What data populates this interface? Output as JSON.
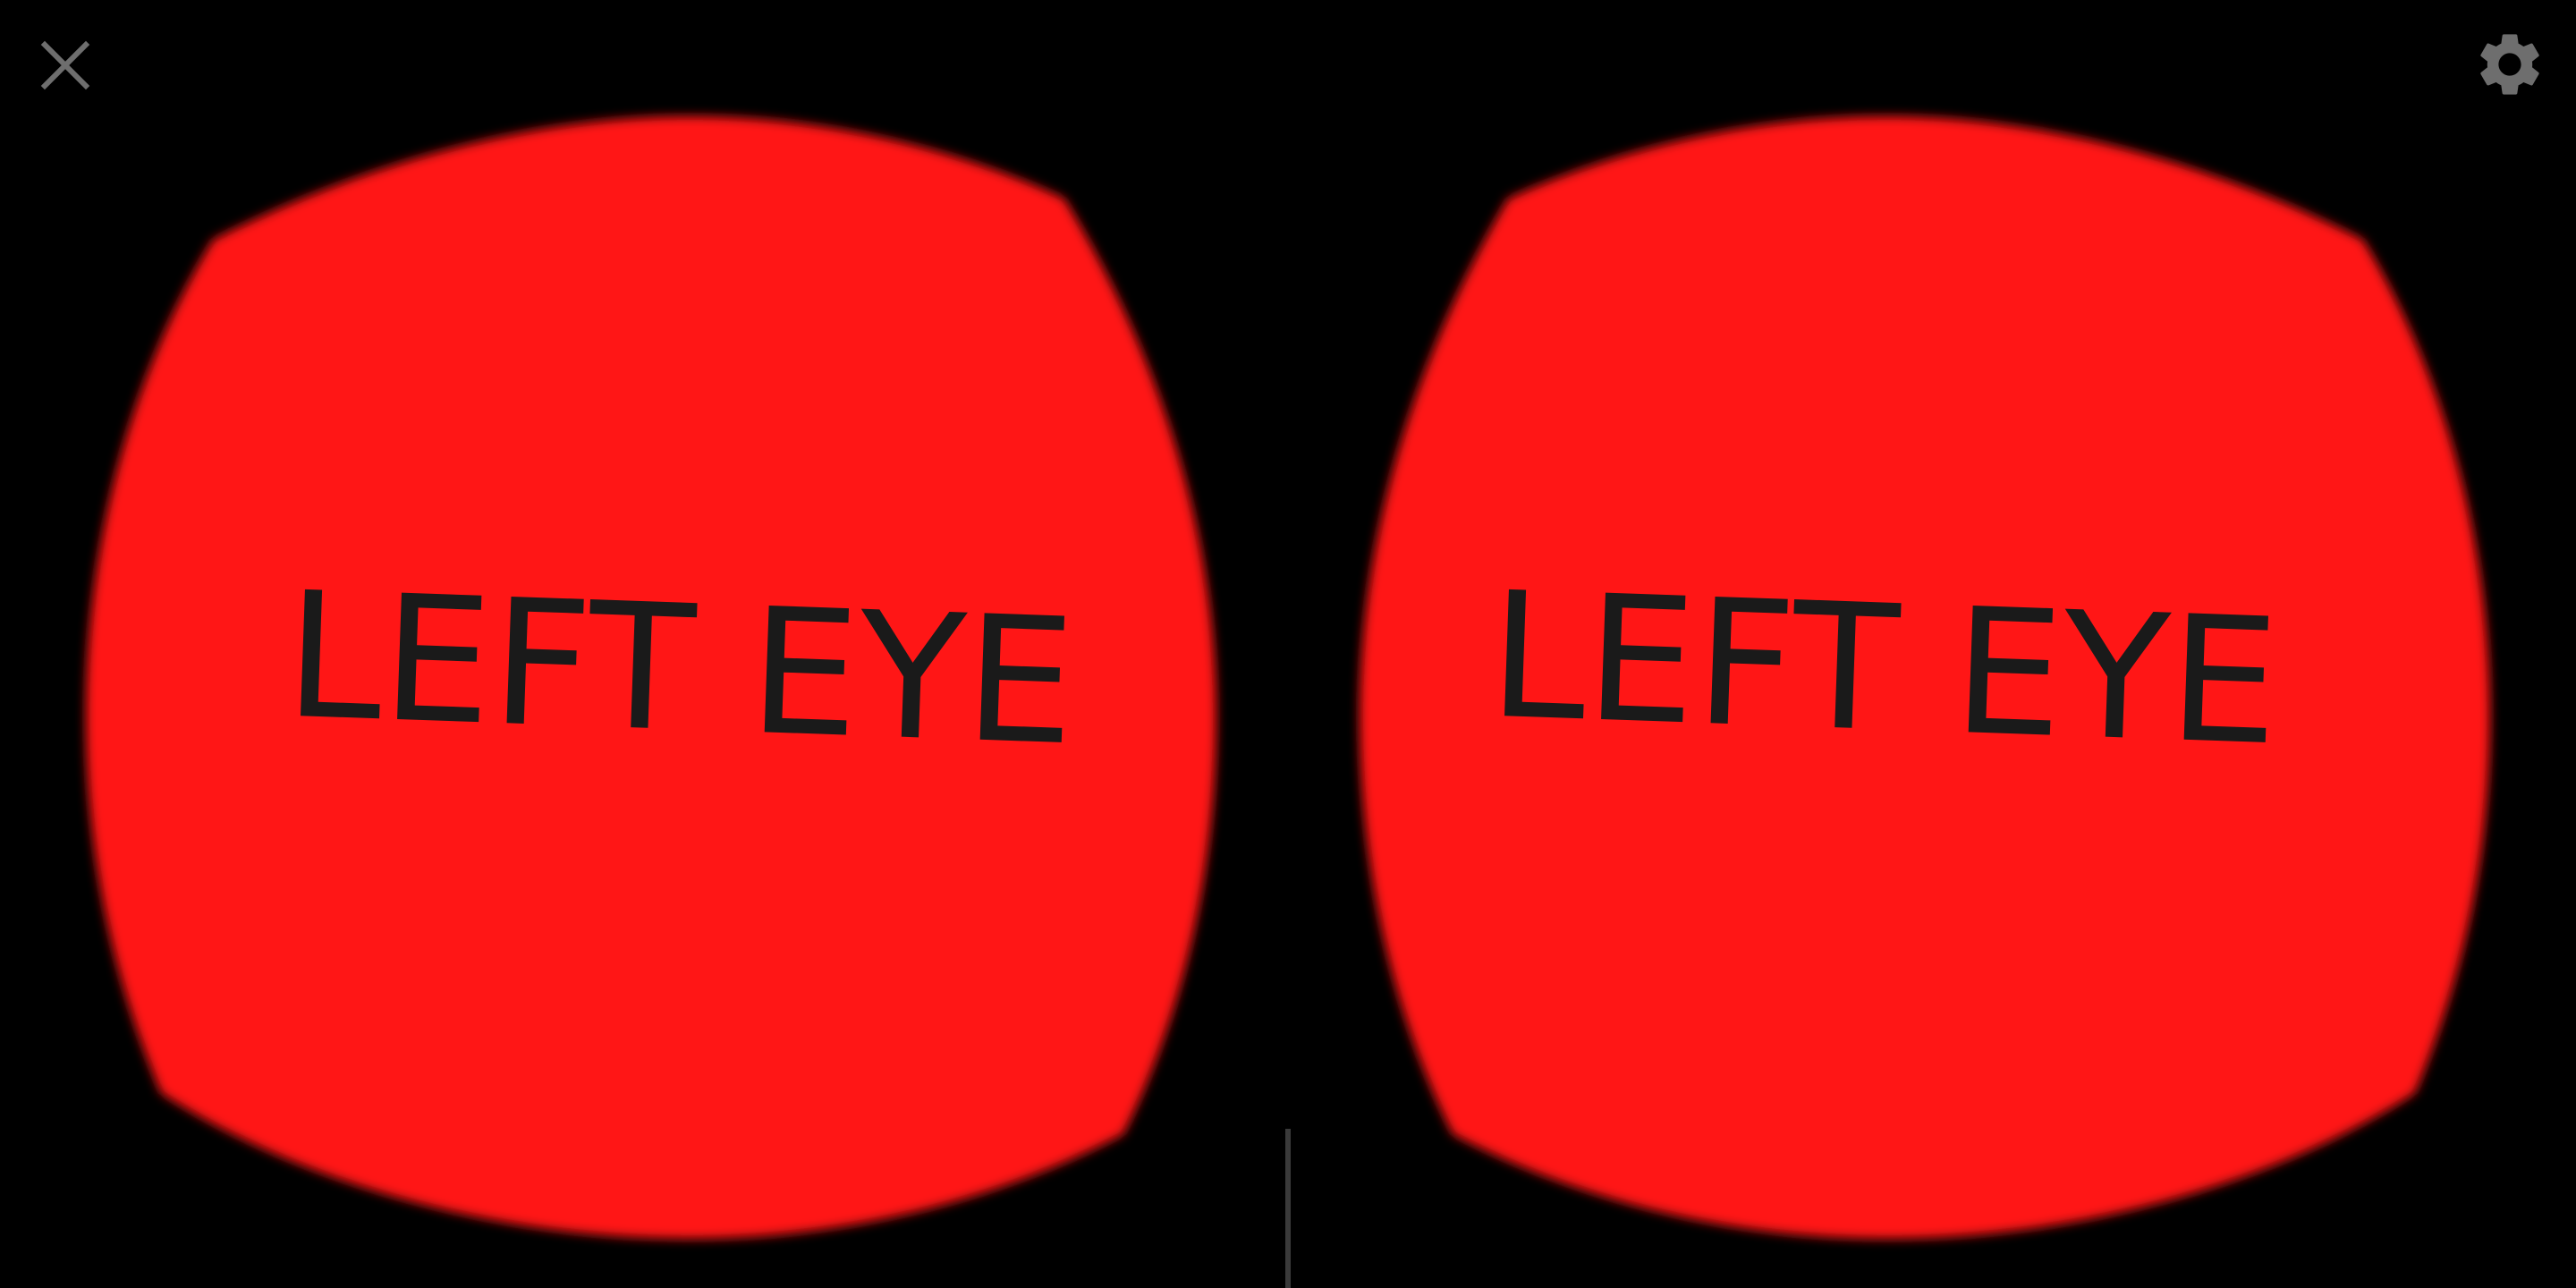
{
  "toolbar": {
    "close_icon": "close-icon",
    "settings_icon": "gear-icon"
  },
  "eyes": {
    "left": {
      "label": "LEFT EYE"
    },
    "right": {
      "label": "LEFT EYE"
    }
  },
  "colors": {
    "background": "#000000",
    "lens_fill": "#ff1616",
    "label_text": "#1a1a1a",
    "icon": "#6e6e6e",
    "divider": "#3a3a3a"
  }
}
